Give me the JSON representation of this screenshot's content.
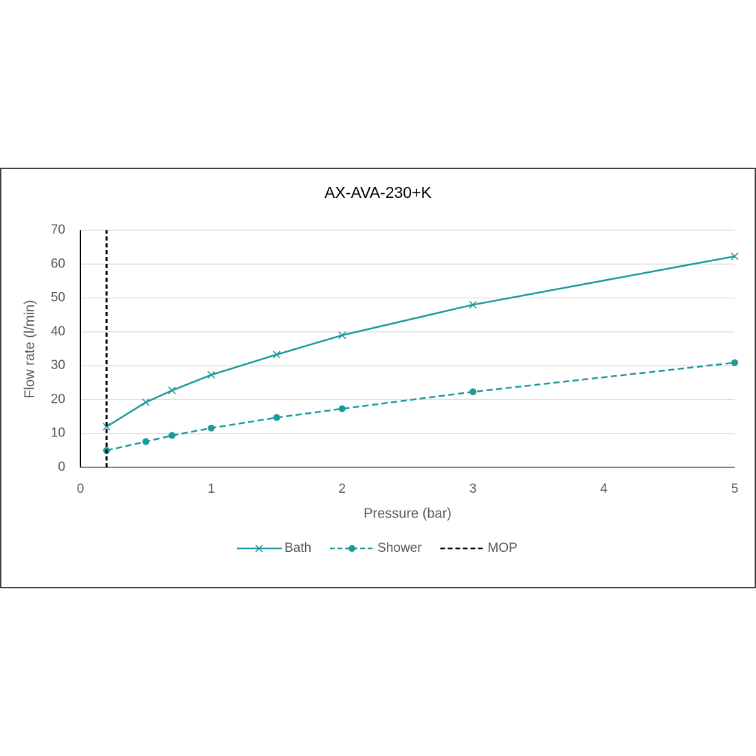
{
  "chart_data": {
    "type": "line",
    "title": "AX-AVA-230+K",
    "x_label": "Pressure (bar)",
    "y_label": "Flow rate (l/min)",
    "xlim": [
      0,
      5
    ],
    "xticks": [
      0,
      1,
      2,
      3,
      4,
      5
    ],
    "ylim": [
      0,
      70
    ],
    "yticks": [
      0,
      10,
      20,
      30,
      40,
      50,
      60,
      70
    ],
    "grid": true,
    "legend": "bottom",
    "series": [
      {
        "name": "Bath",
        "color": "#1c9a9b",
        "line_style": "solid",
        "marker": "x",
        "x": [
          0.2,
          0.5,
          0.7,
          1,
          1.5,
          2,
          3,
          5
        ],
        "values": [
          12,
          19.2,
          22.7,
          27.3,
          33.3,
          39,
          48,
          62.3
        ]
      },
      {
        "name": "Shower",
        "color": "#1c9a9b",
        "line_style": "dashed",
        "marker": "circle",
        "x": [
          0.2,
          0.5,
          0.7,
          1,
          1.5,
          2,
          3,
          5
        ],
        "values": [
          5,
          7.6,
          9.4,
          11.6,
          14.7,
          17.3,
          22.3,
          30.9
        ]
      },
      {
        "name": "MOP",
        "color": "#000000",
        "line_style": "dashed",
        "marker": null,
        "x": [
          0.2,
          0.2
        ],
        "values": [
          0,
          70
        ]
      }
    ]
  }
}
